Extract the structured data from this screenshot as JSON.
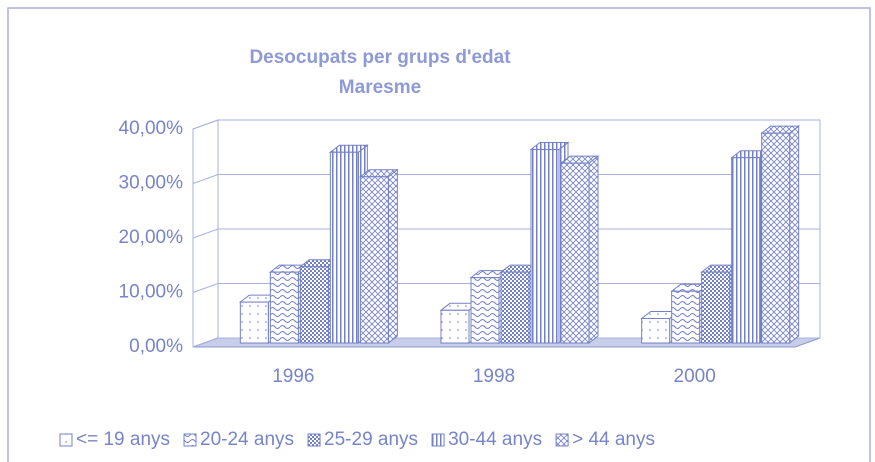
{
  "chart_data": {
    "type": "bar3d",
    "title": [
      "Desocupats per grups d'edat",
      "Maresme"
    ],
    "categories": [
      "1996",
      "1998",
      "2000"
    ],
    "series": [
      {
        "name": "<= 19 anys",
        "values": [
          7.5,
          6,
          4.5
        ]
      },
      {
        "name": "20-24 anys",
        "values": [
          13,
          12,
          9.5
        ]
      },
      {
        "name": "25-29 anys",
        "values": [
          14,
          13,
          13
        ]
      },
      {
        "name": "30-44 anys",
        "values": [
          35,
          35.5,
          34
        ]
      },
      {
        "name": "> 44 anys",
        "values": [
          30.5,
          33,
          38.5
        ]
      }
    ],
    "color": "#7380c6",
    "ylim": [
      0,
      40
    ],
    "yticks": [
      {
        "value": 0,
        "label": "0,00%"
      },
      {
        "value": 10,
        "label": "10,00%"
      },
      {
        "value": 20,
        "label": "20,00%"
      },
      {
        "value": 30,
        "label": "30,00%"
      },
      {
        "value": 40,
        "label": "40,00%"
      }
    ],
    "grid": true,
    "legend": "bottom"
  }
}
